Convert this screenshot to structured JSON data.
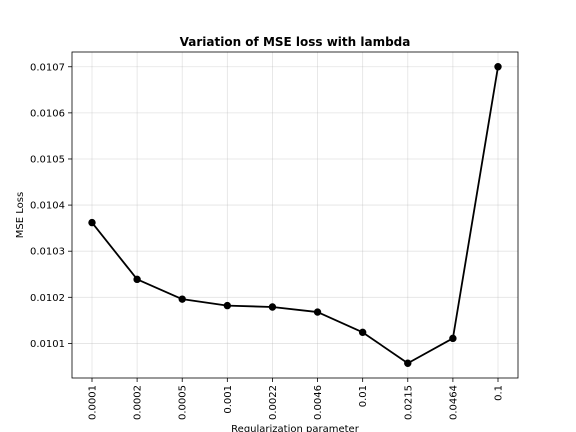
{
  "chart_data": {
    "type": "line",
    "title": "Variation of MSE loss with lambda",
    "xlabel": "Regularization parameter",
    "ylabel": "MSE Loss",
    "categories": [
      "0.0001",
      "0.0002",
      "0.0005",
      "0.001",
      "0.0022",
      "0.0046",
      "0.01",
      "0.0215",
      "0.0464",
      "0.1"
    ],
    "series": [
      {
        "values": [
          0.010362,
          0.010239,
          0.010196,
          0.010182,
          0.010179,
          0.010168,
          0.010124,
          0.010057,
          0.010111,
          0.0107
        ]
      }
    ],
    "yticks": [
      0.0101,
      0.0102,
      0.0103,
      0.0104,
      0.0105,
      0.0106,
      0.0107
    ],
    "ytick_labels": [
      "0.0101",
      "0.0102",
      "0.0103",
      "0.0104",
      "0.0105",
      "0.0106",
      "0.0107"
    ],
    "ylim": [
      0.010025,
      0.010732
    ],
    "grid": true,
    "x_tick_rotation": "vertical",
    "line_color": "#000000",
    "marker": "circle"
  }
}
